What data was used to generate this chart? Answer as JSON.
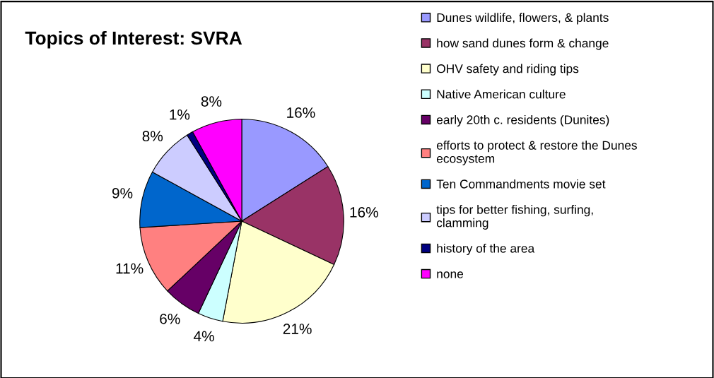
{
  "chart_data": {
    "type": "pie",
    "title": "Topics of Interest: SVRA",
    "categories": [
      "Dunes wildlife, flowers, & plants",
      "how sand dunes form & change",
      "OHV safety and riding tips",
      "Native American culture",
      "early 20th c. residents (Dunites)",
      "efforts to protect & restore the Dunes ecosystem",
      "Ten Commandments movie set",
      "tips for better fishing, surfing, clamming",
      "history of the area",
      "none"
    ],
    "values": [
      16,
      16,
      21,
      4,
      6,
      11,
      9,
      8,
      1,
      8
    ],
    "colors": [
      "#9999ff",
      "#993366",
      "#ffffcc",
      "#ccffff",
      "#660066",
      "#ff8080",
      "#0066cc",
      "#ccccff",
      "#000080",
      "#ff00ff"
    ],
    "value_labels": [
      "16%",
      "16%",
      "21%",
      "4%",
      "6%",
      "11%",
      "9%",
      "8%",
      "1%",
      "8%"
    ],
    "legend": "right"
  }
}
